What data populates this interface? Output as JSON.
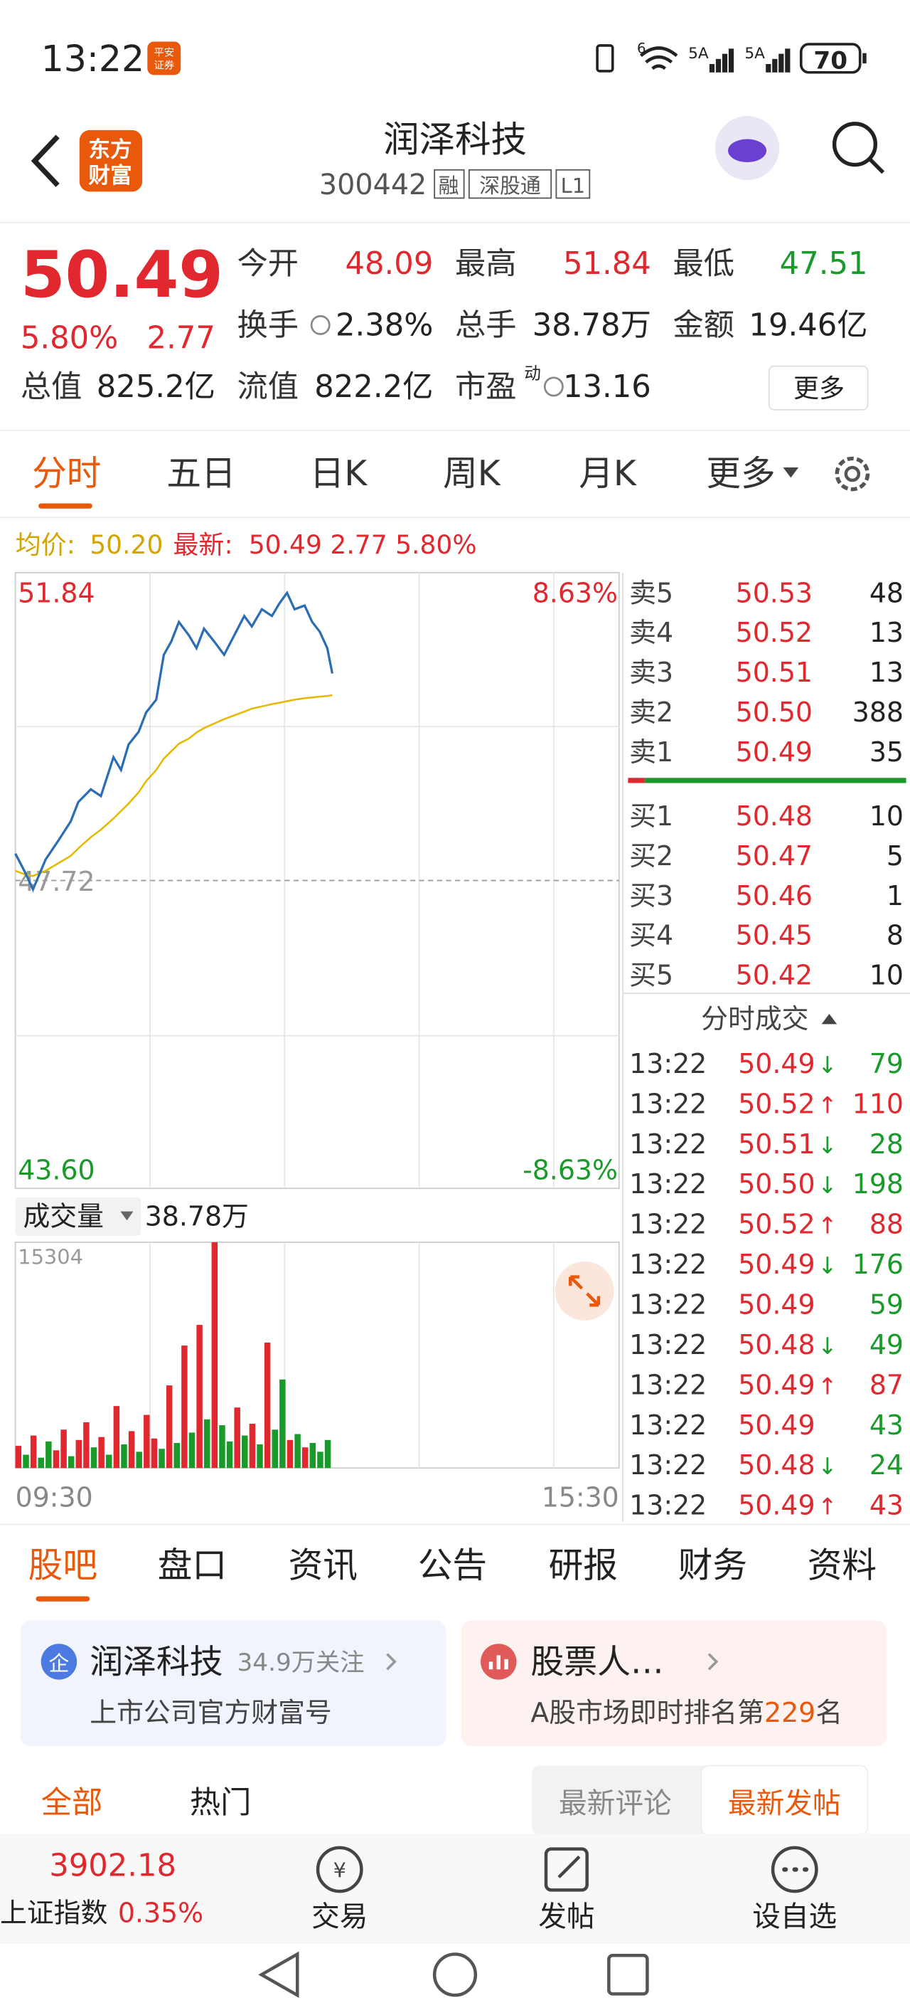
{
  "status": {
    "time": "13:22",
    "badge": [
      "平安",
      "证券"
    ],
    "signal_labels": [
      "6",
      "5A",
      "5A"
    ],
    "battery": "70"
  },
  "header": {
    "logo": [
      "东方",
      "财富"
    ],
    "title": "润泽科技",
    "code": "300442",
    "tags": [
      "融",
      "深股通",
      "L1"
    ]
  },
  "quote": {
    "price": "50.49",
    "pct": "5.80%",
    "change": "2.77",
    "fields": [
      {
        "label": "今开",
        "value": "48.09"
      },
      {
        "label": "最高",
        "value": "51.84"
      },
      {
        "label": "最低",
        "value": "47.51"
      },
      {
        "label": "换手",
        "value": "2.38%"
      },
      {
        "label": "总手",
        "value": "38.78万"
      },
      {
        "label": "金额",
        "value": "19.46亿"
      },
      {
        "label": "总值",
        "value": "825.2亿"
      },
      {
        "label": "流值",
        "value": "822.2亿"
      },
      {
        "label": "市盈",
        "value": "13.16"
      }
    ],
    "pe_sup": "动",
    "more": "更多"
  },
  "tabs": [
    "分时",
    "五日",
    "日K",
    "周K",
    "月K",
    "更多"
  ],
  "legend": {
    "avg_label": "均价:",
    "avg_value": "50.20",
    "latest_label": "最新:",
    "latest_value": "50.49 2.77 5.80%"
  },
  "chart_data": [
    {
      "type": "line",
      "xlim": [
        0,
        240
      ],
      "x": [
        0,
        4,
        7,
        12,
        17,
        22,
        25,
        30,
        34,
        39,
        42,
        45,
        49,
        52,
        56,
        59,
        62,
        65,
        69,
        72,
        75,
        79,
        83,
        87,
        91,
        94,
        98,
        102,
        105,
        108,
        111,
        115,
        118,
        121,
        124,
        126
      ],
      "ylim": [
        43.6,
        51.84
      ],
      "yticks": [
        51.84,
        47.72,
        {
          "value": 43.6,
          "label": "43.60"
        }
      ],
      "y2lim": [
        -8.63,
        8.63
      ],
      "y2ticks": [
        {
          "value": 8.63,
          "label": "8.63%"
        },
        {
          "value": -8.63,
          "label": "-8.63%"
        }
      ],
      "series": [
        {
          "color": "#2a6db5",
          "values": [
            48.08,
            47.82,
            47.6,
            48.0,
            48.25,
            48.51,
            48.77,
            48.94,
            48.85,
            49.37,
            49.2,
            49.54,
            49.71,
            49.97,
            50.14,
            50.74,
            50.92,
            51.18,
            51.0,
            50.83,
            51.09,
            50.92,
            50.74,
            51.0,
            51.26,
            51.12,
            51.35,
            51.26,
            51.43,
            51.57,
            51.35,
            51.4,
            51.18,
            51.05,
            50.83,
            50.49
          ]
        },
        {
          "color": "#e6b800",
          "values": [
            47.85,
            47.8,
            47.78,
            47.85,
            47.95,
            48.05,
            48.15,
            48.3,
            48.4,
            48.55,
            48.65,
            48.75,
            48.9,
            49.05,
            49.2,
            49.35,
            49.45,
            49.55,
            49.62,
            49.7,
            49.76,
            49.82,
            49.88,
            49.93,
            49.98,
            50.02,
            50.05,
            50.08,
            50.1,
            50.12,
            50.14,
            50.16,
            50.17,
            50.18,
            50.19,
            50.2
          ]
        }
      ]
    },
    {
      "type": "bar",
      "title": "成交量",
      "subtitle": "38.78万",
      "xlim": [
        0,
        240
      ],
      "xticks": [
        {
          "value": 0,
          "label": "09:30"
        },
        {
          "value": 240,
          "label": "15:30"
        }
      ],
      "x": [
        0,
        3,
        6,
        9,
        12,
        15,
        18,
        21,
        24,
        27,
        30,
        33,
        36,
        39,
        42,
        45,
        48,
        51,
        54,
        57,
        60,
        63,
        66,
        69,
        72,
        75,
        78,
        81,
        84,
        87,
        90,
        93,
        96,
        99,
        102,
        105,
        108,
        111,
        114,
        117,
        120,
        123
      ],
      "ylim": [
        0,
        15304
      ],
      "yticks": [
        15304
      ],
      "values": [
        1500,
        900,
        2200,
        700,
        1800,
        1200,
        2600,
        800,
        1900,
        3100,
        1400,
        2100,
        900,
        4200,
        1600,
        2500,
        1100,
        3600,
        2000,
        1300,
        5600,
        1700,
        8300,
        2400,
        9700,
        3300,
        15304,
        2900,
        1800,
        4100,
        2200,
        3000,
        1600,
        8500,
        2600,
        6000,
        1900,
        2300,
        1400,
        1700,
        1100,
        1900
      ],
      "colors": [
        "#e0282e",
        "#1a9a2a",
        "#e0282e",
        "#1a9a2a",
        "#1a9a2a",
        "#e0282e",
        "#e0282e",
        "#1a9a2a",
        "#e0282e",
        "#e0282e",
        "#1a9a2a",
        "#e0282e",
        "#1a9a2a",
        "#e0282e",
        "#1a9a2a",
        "#e0282e",
        "#1a9a2a",
        "#e0282e",
        "#e0282e",
        "#1a9a2a",
        "#e0282e",
        "#1a9a2a",
        "#e0282e",
        "#1a9a2a",
        "#e0282e",
        "#1a9a2a",
        "#e0282e",
        "#1a9a2a",
        "#1a9a2a",
        "#e0282e",
        "#1a9a2a",
        "#e0282e",
        "#1a9a2a",
        "#e0282e",
        "#1a9a2a",
        "#1a9a2a",
        "#e0282e",
        "#1a9a2a",
        "#e0282e",
        "#1a9a2a",
        "#1a9a2a",
        "#1a9a2a"
      ]
    }
  ],
  "order_book": {
    "asks": [
      {
        "label": "卖5",
        "price": "50.53",
        "volume": 48
      },
      {
        "label": "卖4",
        "price": "50.52",
        "volume": 13
      },
      {
        "label": "卖3",
        "price": "50.51",
        "volume": 13
      },
      {
        "label": "卖2",
        "price": "50.50",
        "volume": 388
      },
      {
        "label": "卖1",
        "price": "50.49",
        "volume": 35
      }
    ],
    "bids": [
      {
        "label": "买1",
        "price": "50.48",
        "volume": 10
      },
      {
        "label": "买2",
        "price": "50.47",
        "volume": 5
      },
      {
        "label": "买3",
        "price": "50.46",
        "volume": 1
      },
      {
        "label": "买4",
        "price": "50.45",
        "volume": 8
      },
      {
        "label": "买5",
        "price": "50.42",
        "volume": 10
      }
    ]
  },
  "trades": {
    "title": "分时成交",
    "rows": [
      {
        "time": "13:22",
        "price": "50.49",
        "dir": "↓",
        "volume": 79
      },
      {
        "time": "13:22",
        "price": "50.52",
        "dir": "↑",
        "volume": 110
      },
      {
        "time": "13:22",
        "price": "50.51",
        "dir": "↓",
        "volume": 28
      },
      {
        "time": "13:22",
        "price": "50.50",
        "dir": "↓",
        "volume": 198
      },
      {
        "time": "13:22",
        "price": "50.52",
        "dir": "↑",
        "volume": 88
      },
      {
        "time": "13:22",
        "price": "50.49",
        "dir": "↓",
        "volume": 176
      },
      {
        "time": "13:22",
        "price": "50.49",
        "volume": 59
      },
      {
        "time": "13:22",
        "price": "50.48",
        "dir": "↓",
        "volume": 49
      },
      {
        "time": "13:22",
        "price": "50.49",
        "dir": "↑",
        "volume": 87
      },
      {
        "time": "13:22",
        "price": "50.49",
        "volume": 43
      },
      {
        "time": "13:22",
        "price": "50.48",
        "dir": "↓",
        "volume": 24
      },
      {
        "time": "13:22",
        "price": "50.49",
        "dir": "↑",
        "volume": 43
      }
    ]
  },
  "bottom_tabs": [
    "股吧",
    "盘口",
    "资讯",
    "公告",
    "研报",
    "财务",
    "资料"
  ],
  "cards": [
    {
      "icon": "企",
      "name": "润泽科技",
      "followers": "34.9万关注",
      "subtitle": "上市公司官方财富号"
    },
    {
      "name": "股票人…",
      "subtitle": "A股市场即时排名第",
      "rank": "229",
      "suffix": "名"
    }
  ],
  "filters": {
    "left": [
      "全部",
      "热门"
    ],
    "right": [
      "最新评论",
      "最新发帖"
    ]
  },
  "footer": {
    "index_value": "3902.18",
    "index_name": "上证指数",
    "index_pct": "0.35%",
    "actions": [
      "交易",
      "发帖",
      "设自选"
    ]
  }
}
